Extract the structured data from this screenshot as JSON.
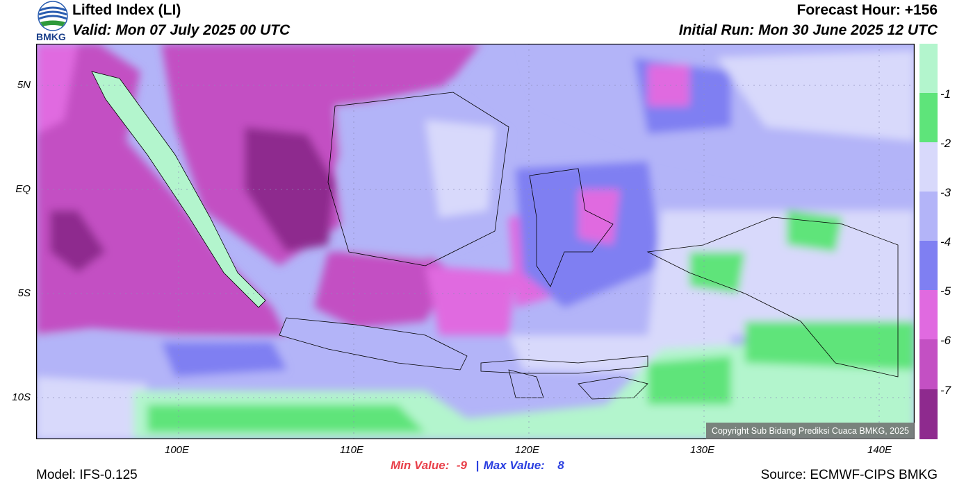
{
  "header": {
    "logo_text": "BMKG",
    "title": "Lifted Index (LI)",
    "valid": "Valid: Mon 07 July 2025 00 UTC",
    "forecast_hour": "Forecast Hour: +156",
    "initial_run": "Initial Run: Mon 30 June 2025 12 UTC"
  },
  "map": {
    "lat_labels": [
      "5N",
      "EQ",
      "5S",
      "10S"
    ],
    "lon_labels": [
      "100E",
      "110E",
      "120E",
      "130E",
      "140E"
    ],
    "copyright": "Copyright Sub Bidang Prediksi Cuaca BMKG, 2025"
  },
  "colorbar": {
    "labels": [
      "-1",
      "-2",
      "-3",
      "-4",
      "-5",
      "-6",
      "-7"
    ],
    "colors": [
      "#b3f5cd",
      "#5ee47a",
      "#d8d9fb",
      "#b3b4f8",
      "#7f7ff2",
      "#e06ae0",
      "#c350c3",
      "#8e2a8e"
    ]
  },
  "stats": {
    "min_label": "Min Value:",
    "min_value": "-9",
    "separator": "|",
    "max_label": "Max Value:",
    "max_value": "8",
    "min_color": "#e8404a",
    "max_color": "#2a3fe0"
  },
  "footer": {
    "model": "Model: IFS-0.125",
    "source": "Source: ECMWF-CIPS BMKG"
  }
}
